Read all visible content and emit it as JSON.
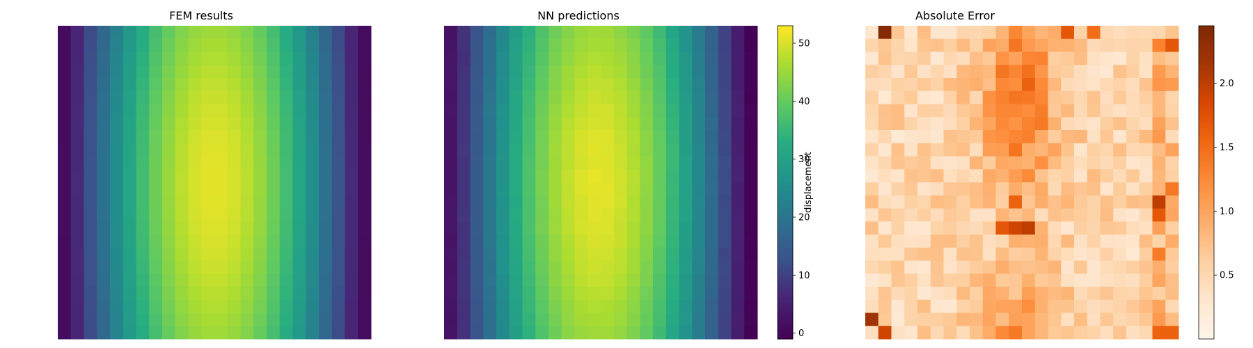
{
  "chart_data": [
    {
      "type": "heatmap",
      "title": "FEM results",
      "grid": [
        24,
        24
      ],
      "colormap": "viridis",
      "value_range": [
        -1,
        53
      ],
      "peak_value": 52,
      "peak_location": "center, slightly above middle",
      "colorbar": false
    },
    {
      "type": "heatmap",
      "title": "NN predictions",
      "grid": [
        24,
        24
      ],
      "colormap": "viridis",
      "value_range": [
        -1,
        53
      ],
      "peak_value": 52,
      "peak_location": "center-left, slightly above middle",
      "colorbar": {
        "label": "displacement",
        "ticks": [
          0,
          10,
          20,
          30,
          40,
          50
        ],
        "range": [
          -1,
          53
        ]
      }
    },
    {
      "type": "heatmap",
      "title": "Absolute Error",
      "grid": [
        24,
        24
      ],
      "colormap": "oranges",
      "value_range": [
        0,
        2.45
      ],
      "peak_value": 2.4,
      "colorbar": {
        "label": "",
        "ticks": [
          0.5,
          1.0,
          1.5,
          2.0
        ],
        "tick_labels": [
          "0.5",
          "1.0",
          "1.5",
          "2.0"
        ],
        "range": [
          0,
          2.45
        ]
      }
    }
  ]
}
